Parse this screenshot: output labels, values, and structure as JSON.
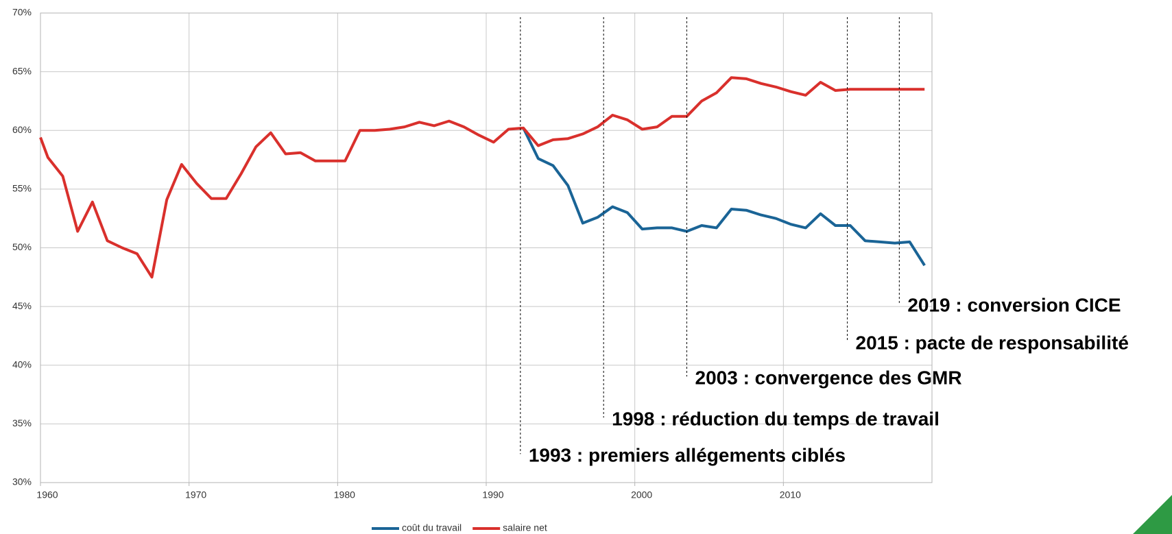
{
  "chart_data": {
    "type": "line",
    "x": [
      1960,
      1960.5,
      1961.5,
      1962.5,
      1963.5,
      1964.5,
      1965.5,
      1966.5,
      1967.5,
      1968.5,
      1969.5,
      1970.5,
      1971.5,
      1972.5,
      1973.5,
      1974.5,
      1975.5,
      1976.5,
      1977.5,
      1978.5,
      1979.5,
      1980.5,
      1981.5,
      1982.5,
      1983.5,
      1984.5,
      1985.5,
      1986.5,
      1987.5,
      1988.5,
      1989.5,
      1990.5,
      1991.5,
      1992.5,
      1993.5,
      1994.5,
      1995.5,
      1996.5,
      1997.5,
      1998.5,
      1999.5,
      2000.5,
      2001.5,
      2002.5,
      2003.5,
      2004.5,
      2005.5,
      2006.5,
      2007.5,
      2008.5,
      2009.5,
      2010.5,
      2011.5,
      2012.5,
      2013.5,
      2014.5,
      2015.5,
      2016.5,
      2017.5,
      2018.5,
      2019.5
    ],
    "series": [
      {
        "name": "coût du travail",
        "color": "#1a6496",
        "values": [
          null,
          null,
          null,
          null,
          null,
          null,
          null,
          null,
          null,
          null,
          null,
          null,
          null,
          null,
          null,
          null,
          null,
          null,
          null,
          null,
          null,
          null,
          null,
          null,
          null,
          null,
          null,
          null,
          null,
          null,
          null,
          null,
          null,
          60.2,
          57.6,
          57.0,
          55.3,
          52.1,
          52.6,
          53.5,
          53.0,
          51.6,
          51.7,
          51.7,
          51.4,
          51.9,
          51.7,
          53.3,
          53.2,
          52.8,
          52.5,
          52.0,
          51.7,
          52.9,
          51.9,
          51.9,
          50.6,
          50.5,
          50.4,
          50.5,
          48.5
        ]
      },
      {
        "name": "salaire net",
        "color": "#d9302c",
        "values": [
          59.4,
          57.7,
          56.1,
          51.4,
          53.9,
          50.6,
          50.0,
          49.5,
          47.5,
          54.1,
          57.1,
          55.5,
          54.2,
          54.2,
          56.3,
          58.6,
          59.8,
          58.0,
          58.1,
          57.4,
          57.4,
          57.4,
          60.0,
          60.0,
          60.1,
          60.3,
          60.7,
          60.4,
          60.8,
          60.3,
          59.6,
          59.0,
          60.1,
          60.2,
          58.7,
          59.2,
          59.3,
          59.7,
          60.3,
          61.3,
          60.9,
          60.1,
          60.3,
          61.2,
          61.2,
          62.5,
          63.2,
          64.5,
          64.4,
          64.0,
          63.7,
          63.3,
          63.0,
          64.1,
          63.4,
          63.5,
          63.5,
          63.5,
          63.5,
          63.5,
          63.5
        ]
      }
    ],
    "xlim": [
      1960,
      2020
    ],
    "xticks": [
      1960,
      1970,
      1980,
      1990,
      2000,
      2010
    ],
    "ylim": [
      30,
      70
    ],
    "yticks": [
      {
        "value": 30,
        "label": "30%"
      },
      {
        "value": 35,
        "label": "35%"
      },
      {
        "value": 40,
        "label": "40%"
      },
      {
        "value": 45,
        "label": "45%"
      },
      {
        "value": 50,
        "label": "50%"
      },
      {
        "value": 55,
        "label": "55%"
      },
      {
        "value": 60,
        "label": "60%"
      },
      {
        "value": 65,
        "label": "65%"
      },
      {
        "value": 70,
        "label": "70%"
      }
    ],
    "grid": true,
    "legend": "bottom",
    "annotations": [
      {
        "text": "1993 : premiers allégements ciblés",
        "x": 1992.3,
        "y": 32.2
      },
      {
        "text": "1998 : réduction du temps de travail",
        "x": 1997.9,
        "y": 35.3
      },
      {
        "text": "2003 : convergence des GMR",
        "x": 2003.5,
        "y": 38.8
      },
      {
        "text": "2015 : pacte de responsabilité",
        "x": 2014.3,
        "y": 41.8
      },
      {
        "text": "2019 : conversion CICE",
        "x": 2017.8,
        "y": 45.0
      }
    ]
  }
}
